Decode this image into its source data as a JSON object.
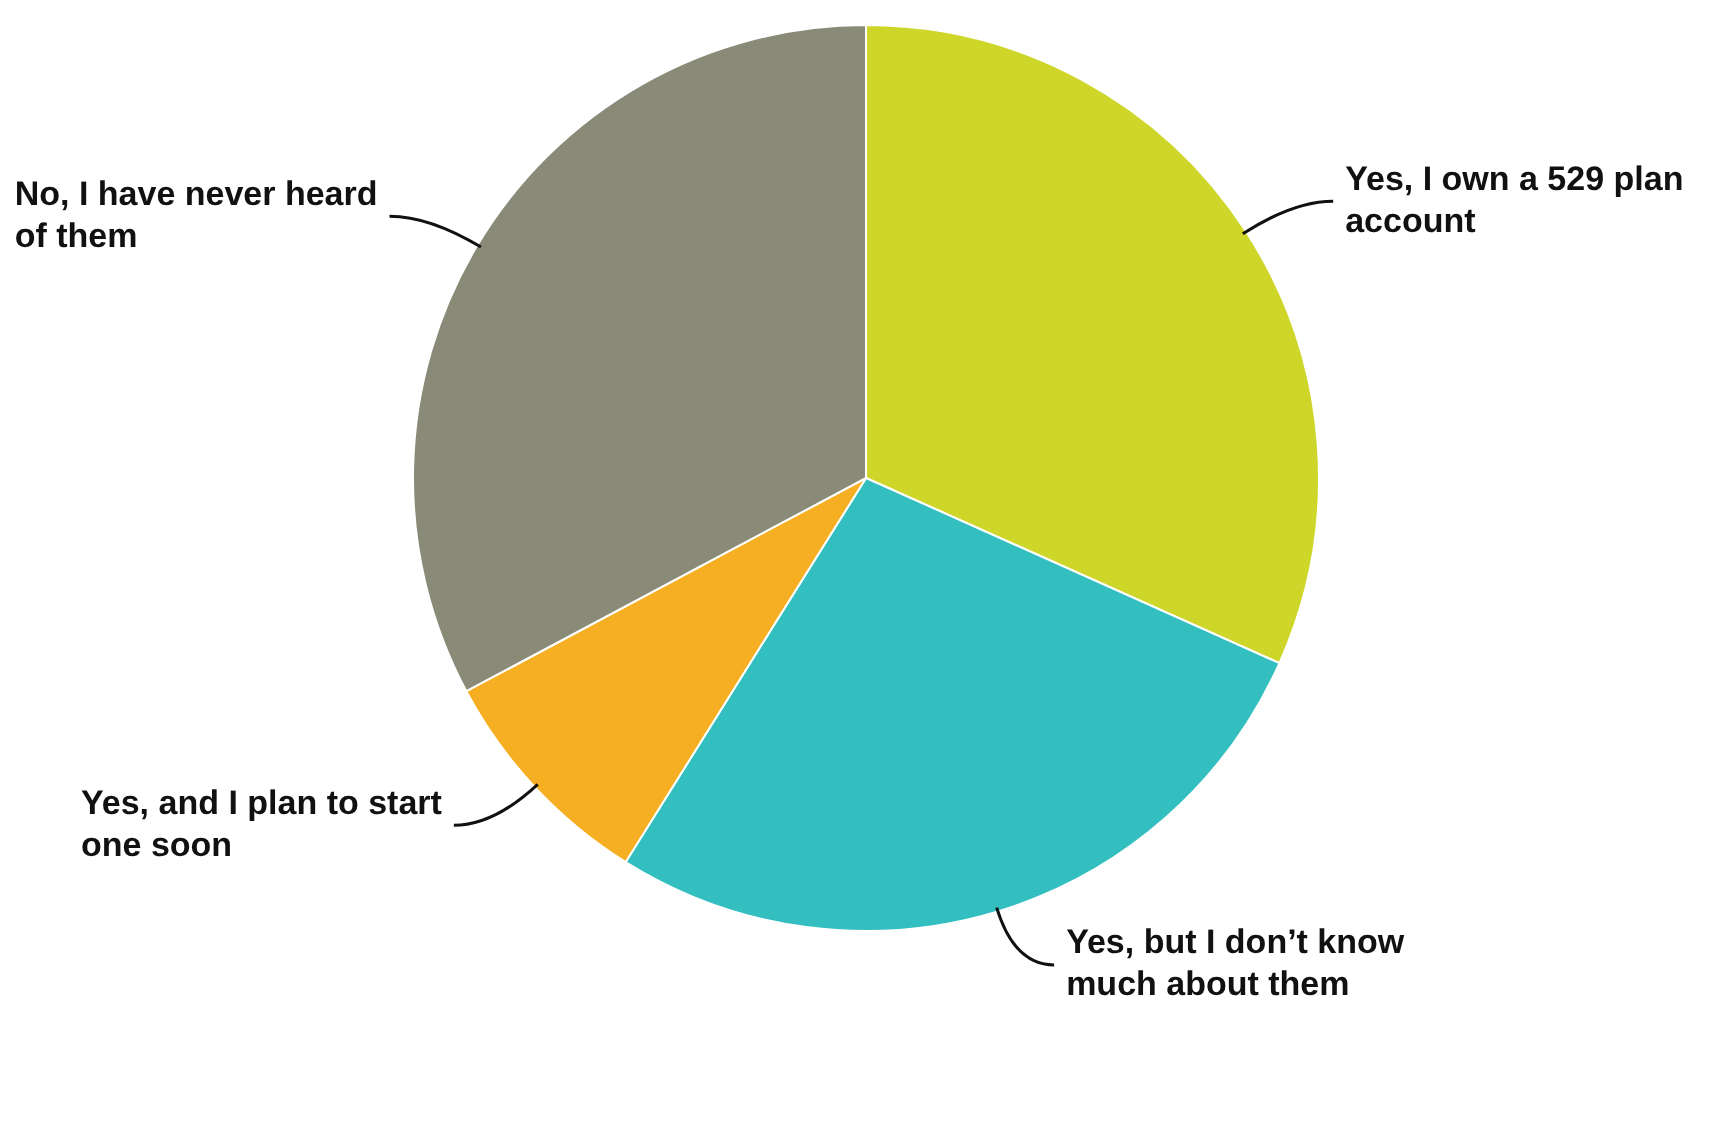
{
  "chart_data": {
    "type": "pie",
    "categories": [
      "Yes, I own a 529 plan account",
      "Yes, but I don’t know much about them",
      "Yes, and I plan to start one soon",
      "No, I have never heard of them"
    ],
    "values": [
      31.7,
      27.2,
      8.3,
      32.8
    ],
    "colors": [
      "#cfd62a",
      "#33bec0",
      "#f6ae22",
      "#8a8a78"
    ]
  }
}
